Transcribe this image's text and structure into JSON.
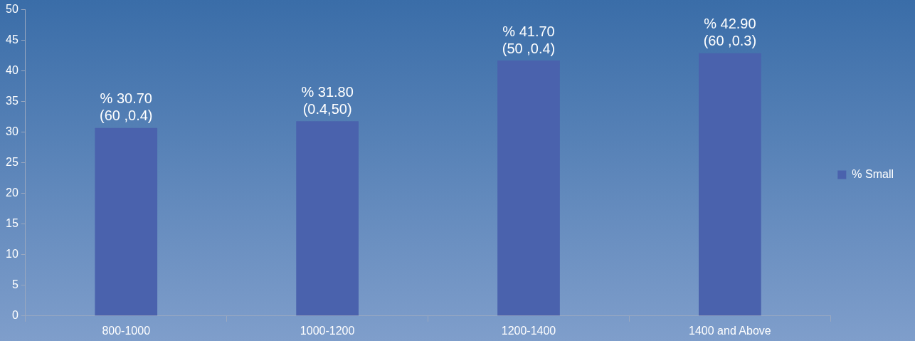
{
  "chart_data": {
    "type": "bar",
    "categories": [
      "800-1000",
      "1000-1200",
      "1200-1400",
      "1400 and Above"
    ],
    "series": [
      {
        "name": "% Small",
        "color": "#4a62ad",
        "values": [
          30.7,
          31.8,
          41.7,
          42.9
        ],
        "value_labels": [
          "% 30.70\n(60 ,0.4)",
          "% 31.80\n(0.4,50)",
          "% 41.70\n(50 ,0.4)",
          "% 42.90\n(60 ,0.3)"
        ]
      }
    ],
    "ylim": [
      0,
      50
    ],
    "yticks": [
      0,
      5,
      10,
      15,
      20,
      25,
      30,
      35,
      40,
      45,
      50
    ],
    "grid": false,
    "legend": "right"
  }
}
